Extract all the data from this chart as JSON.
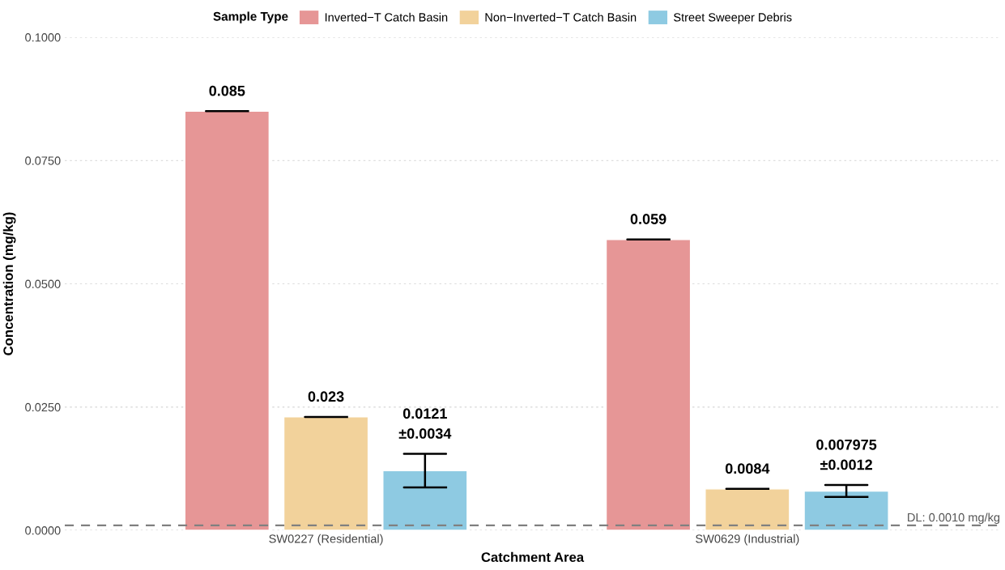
{
  "chart_data": {
    "type": "bar",
    "xlabel": "Catchment Area",
    "ylabel": "Concentration (mg/kg)",
    "legend_title": "Sample Type",
    "legend": "top",
    "categories": [
      "SW0227 (Residential)",
      "SW0629 (Industrial)"
    ],
    "series": [
      {
        "name": "Inverted−T Catch Basin",
        "color": "#e69696",
        "values": [
          0.085,
          0.059
        ],
        "errors": [
          0,
          0
        ],
        "value_labels": [
          "0.085",
          "0.059"
        ]
      },
      {
        "name": "Non−Inverted−T Catch Basin",
        "color": "#f2d29b",
        "values": [
          0.023,
          0.0084
        ],
        "errors": [
          0,
          0
        ],
        "value_labels": [
          "0.023",
          "0.0084"
        ]
      },
      {
        "name": "Street Sweeper Debris",
        "color": "#8ecae2",
        "values": [
          0.0121,
          0.007975
        ],
        "errors": [
          0.0034,
          0.0012
        ],
        "value_labels": [
          "0.0121\n±0.0034",
          "0.007975\n±0.0012"
        ]
      }
    ],
    "ylim": [
      0,
      0.1
    ],
    "yticks": [
      {
        "value": 0,
        "label": "0.0000"
      },
      {
        "value": 0.025,
        "label": "0.0250"
      },
      {
        "value": 0.05,
        "label": "0.0500"
      },
      {
        "value": 0.075,
        "label": "0.0750"
      },
      {
        "value": 0.1,
        "label": "0.1000"
      }
    ],
    "grid": "y",
    "ref_lines": [
      {
        "axis": "y",
        "value": 0.001,
        "label": "DL: 0.0010 mg/kg",
        "color": "#808080",
        "line_style": "dashed"
      }
    ]
  }
}
